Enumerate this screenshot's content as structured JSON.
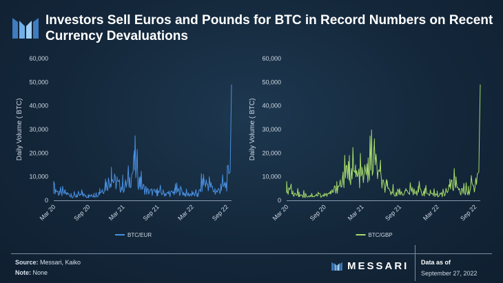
{
  "header": {
    "title": "Investors Sell Euros and Pounds for BTC in Record Numbers on Recent Currency Devaluations"
  },
  "footer": {
    "source_label": "Source:",
    "source_value": "Messari, Kaiko",
    "note_label": "Note:",
    "note_value": "None",
    "brand": "MESSARI",
    "asof_label": "Data as of",
    "asof_date": "September 27, 2022"
  },
  "colors": {
    "background": "#16293d",
    "eur_series": "#4a90e2",
    "gbp_series": "#a6dc6b",
    "axis_text": "#cfd9e4"
  },
  "chart_data": [
    {
      "type": "line",
      "ylabel": "Daily Volume ( BTC)",
      "xlabel": "",
      "ylim": [
        0,
        60000
      ],
      "yticks": [
        0,
        10000,
        20000,
        30000,
        40000,
        50000,
        60000
      ],
      "ytick_labels": [
        "0",
        "10,000",
        "20,000",
        "30,000",
        "40,000",
        "50,000",
        "60,000"
      ],
      "xticks": [
        "Mar 20",
        "Sep 20",
        "Mar 21",
        "Sep 21",
        "Mar 22",
        "Sep 22"
      ],
      "xtick_values": [
        "2020-03",
        "2020-09",
        "2021-03",
        "2021-09",
        "2022-03",
        "2022-09"
      ],
      "grid": false,
      "legend": "bottom-center",
      "series": [
        {
          "name": "BTC/EUR",
          "color": "#4a90e2",
          "x": [
            "2020-03",
            "2020-04",
            "2020-05",
            "2020-06",
            "2020-07",
            "2020-08",
            "2020-09",
            "2020-10",
            "2020-11",
            "2020-12",
            "2021-01",
            "2021-02",
            "2021-03",
            "2021-04",
            "2021-05",
            "2021-06",
            "2021-07",
            "2021-08",
            "2021-09",
            "2021-10",
            "2021-11",
            "2021-12",
            "2022-01",
            "2022-02",
            "2022-03",
            "2022-04",
            "2022-05",
            "2022-06",
            "2022-07",
            "2022-08",
            "2022-09-20",
            "2022-09-27"
          ],
          "values": [
            8000,
            4000,
            4500,
            3000,
            2500,
            3500,
            2500,
            3000,
            5000,
            9000,
            14000,
            10000,
            8000,
            11000,
            21000,
            10000,
            6000,
            5000,
            5000,
            4500,
            4000,
            5000,
            6000,
            3500,
            4000,
            3000,
            11000,
            10000,
            5000,
            7000,
            12000,
            49000
          ]
        }
      ]
    },
    {
      "type": "line",
      "ylabel": "Daily Volume ( BTC)",
      "xlabel": "",
      "ylim": [
        0,
        60000
      ],
      "yticks": [
        0,
        10000,
        20000,
        30000,
        40000,
        50000,
        60000
      ],
      "ytick_labels": [
        "0",
        "10,000",
        "20,000",
        "30,000",
        "40,000",
        "50,000",
        "60,000"
      ],
      "xticks": [
        "Mar 20",
        "Sep 20",
        "Mar 21",
        "Sep 21",
        "Mar 22",
        "Sep 22"
      ],
      "xtick_values": [
        "2020-03",
        "2020-09",
        "2021-03",
        "2021-09",
        "2022-03",
        "2022-09"
      ],
      "grid": false,
      "legend": "bottom-center",
      "series": [
        {
          "name": "BTC/GBP",
          "color": "#a6dc6b",
          "x": [
            "2020-03",
            "2020-04",
            "2020-05",
            "2020-06",
            "2020-07",
            "2020-08",
            "2020-09",
            "2020-10",
            "2020-11",
            "2020-12",
            "2021-01",
            "2021-02",
            "2021-03",
            "2021-04",
            "2021-05",
            "2021-06",
            "2021-07",
            "2021-08",
            "2021-09",
            "2021-10",
            "2021-11",
            "2021-12",
            "2022-01",
            "2022-02",
            "2022-03",
            "2022-04",
            "2022-05",
            "2022-06",
            "2022-07",
            "2022-08",
            "2022-09-20",
            "2022-09-27"
          ],
          "values": [
            8000,
            4000,
            3500,
            3000,
            3000,
            3500,
            3000,
            4000,
            8000,
            12000,
            19000,
            15000,
            14000,
            18000,
            26000,
            12000,
            6000,
            5000,
            5000,
            5000,
            5500,
            6000,
            5000,
            3000,
            4000,
            3500,
            9000,
            10000,
            5000,
            6000,
            12000,
            49000
          ]
        }
      ]
    }
  ]
}
